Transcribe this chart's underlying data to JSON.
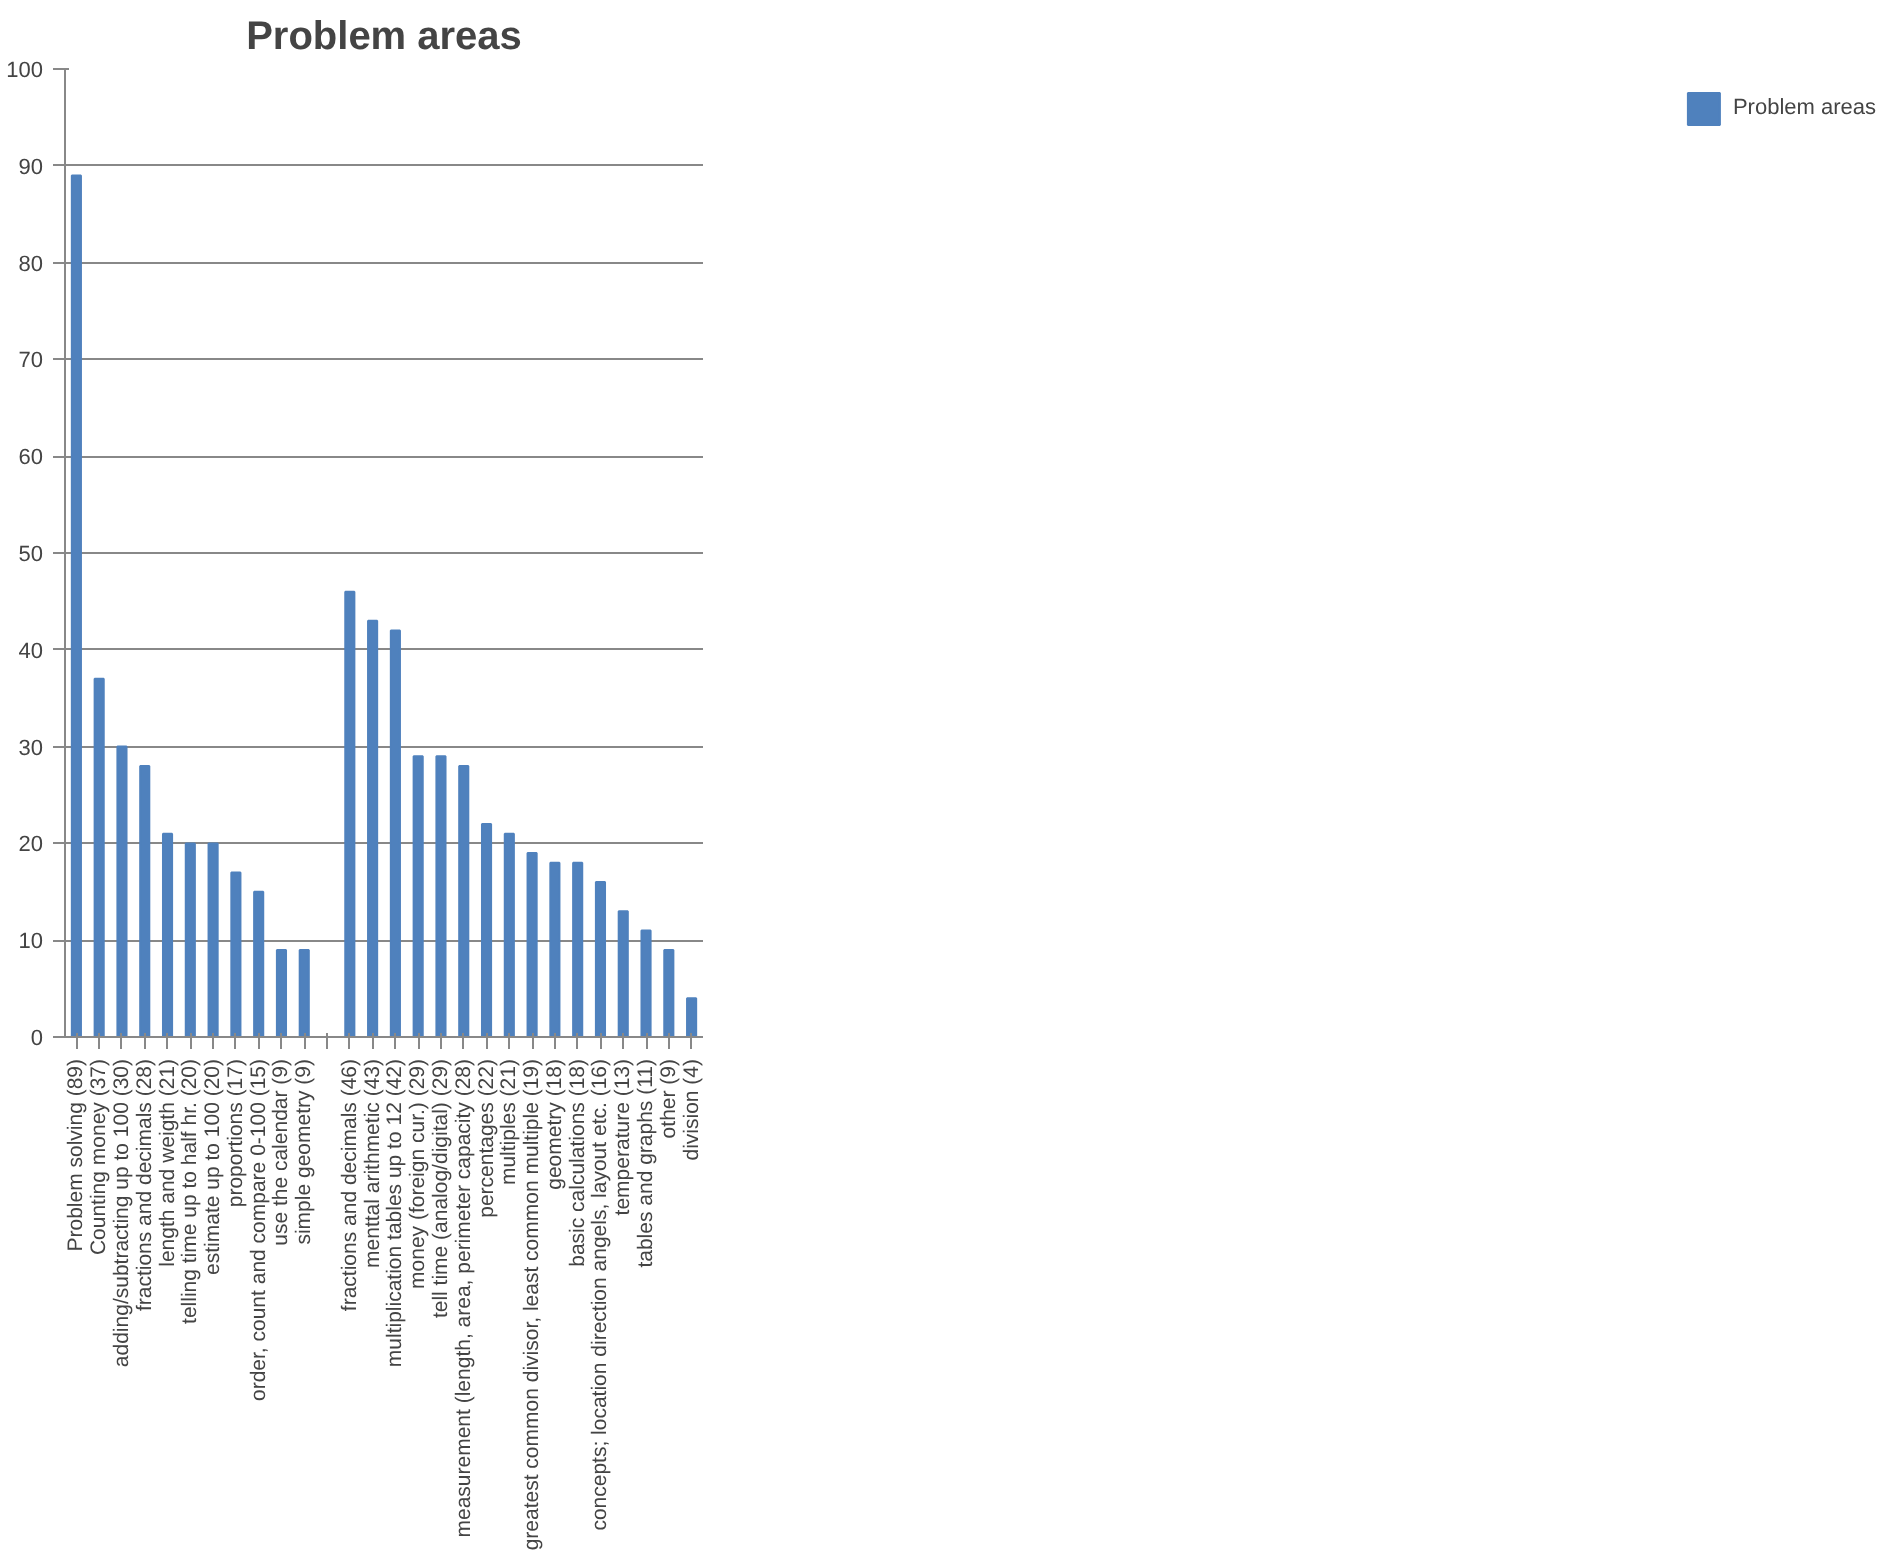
{
  "chart_data": {
    "type": "bar",
    "title": "Problem areas",
    "categories": [
      "Problem solving (89)",
      "Counting money (37)",
      "adding/subtracting up to 100 (30)",
      "fractions and decimals (28)",
      "length and weigth (21)",
      "telling time up to half hr. (20)",
      "estimate up to 100 (20)",
      "proportions (17)",
      "order, count and compare 0-100 (15)",
      "use the calendar (9)",
      "simple geometry (9)",
      null,
      "fractions and decimals (46)",
      "menttal arithmetic (43)",
      "multiplication tables up to 12 (42)",
      "money (foreign cur.) (29)",
      "tell time (analog/digital) (29)",
      "measurement (length, area, perimeter capacity (28)",
      "percentages (22)",
      "multiples (21)",
      "greatest common divisor, least common multiple (19)",
      "geometry (18)",
      "basic calculations (18)",
      "concepts; location direction angels, layout etc. (16)",
      "temperature (13)",
      "tables and graphs (11)",
      "other (9)",
      "division (4)"
    ],
    "series": [
      {
        "name": "Problem areas",
        "color": "#4f81bd",
        "values": [
          89,
          37,
          30,
          28,
          21,
          20,
          20,
          17,
          15,
          9,
          9,
          null,
          46,
          43,
          42,
          29,
          29,
          28,
          22,
          21,
          19,
          18,
          18,
          16,
          13,
          11,
          9,
          4
        ]
      }
    ],
    "ylim": [
      0,
      100
    ],
    "yticks": [
      0,
      10,
      20,
      30,
      40,
      50,
      60,
      70,
      80,
      90,
      100
    ],
    "grid": "y",
    "legend": "right"
  }
}
